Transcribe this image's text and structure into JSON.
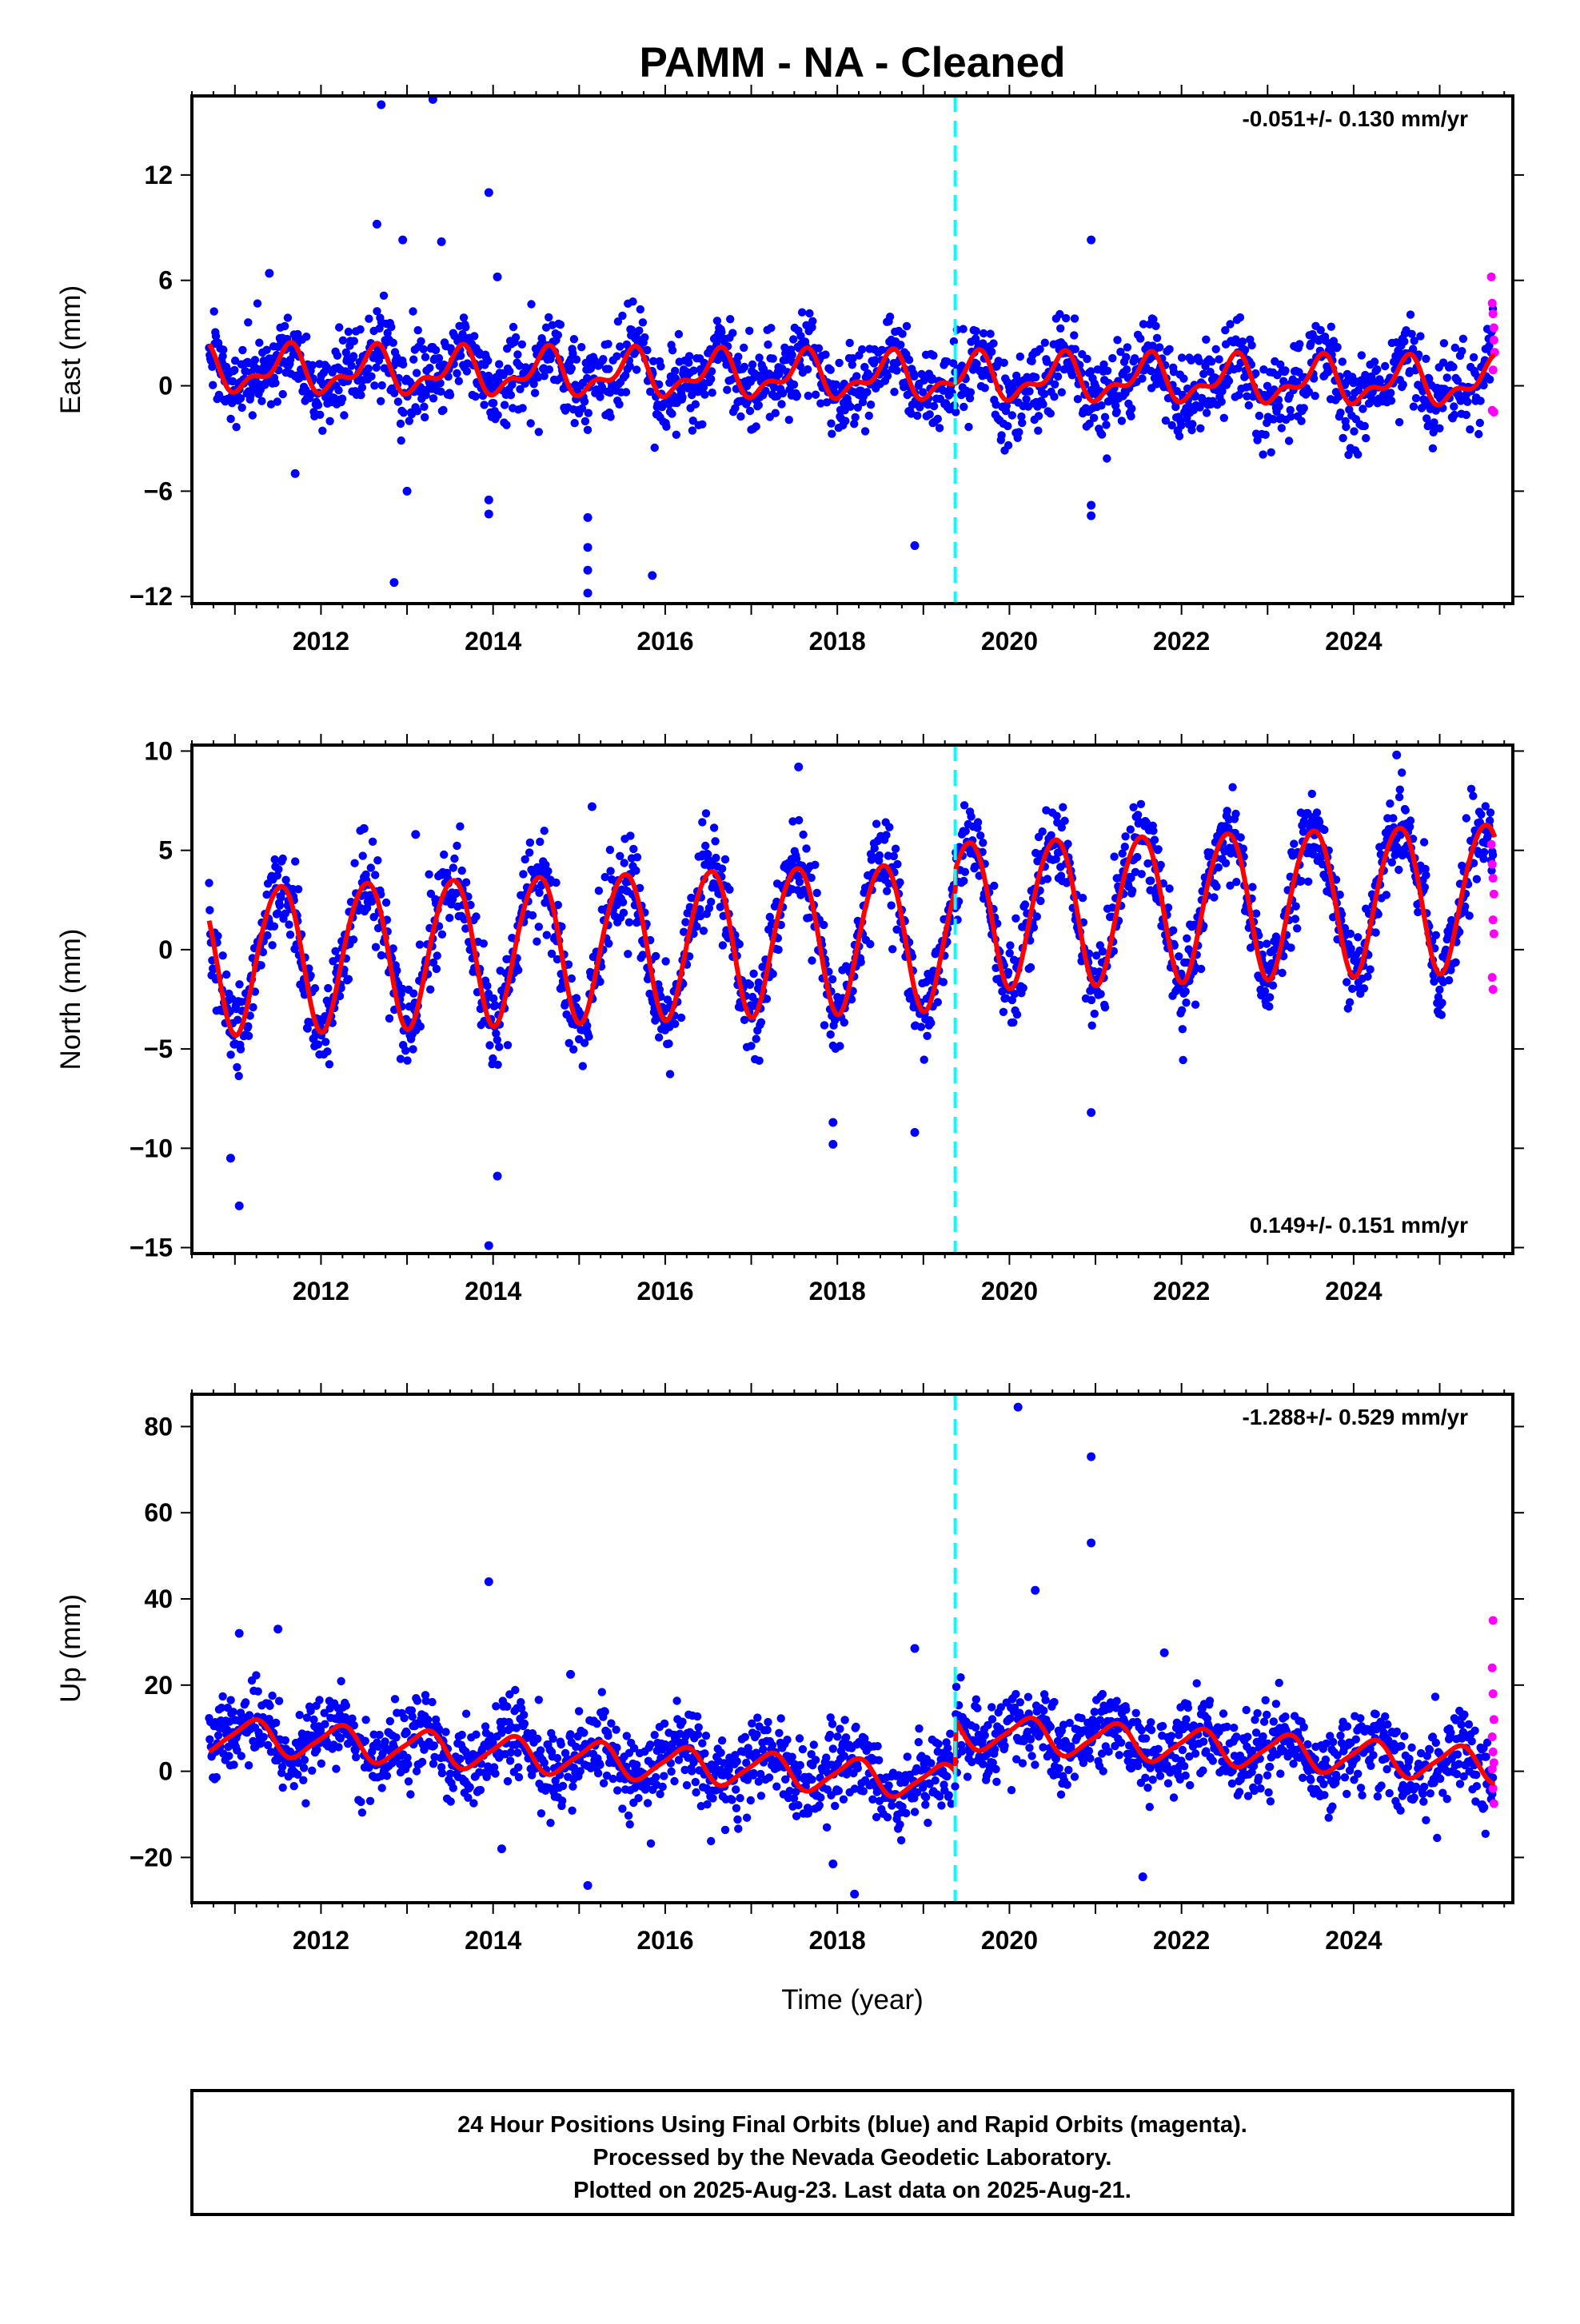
{
  "title": "PAMM  - NA - Cleaned",
  "xlabel": "Time (year)",
  "footer": [
    "24 Hour Positions Using Final Orbits (blue) and Rapid Orbits (magenta).",
    "Processed by the Nevada Geodetic Laboratory.",
    "Plotted on 2025-Aug-23. Last data on 2025-Aug-21."
  ],
  "colors": {
    "final_orbits": "#0000ff",
    "rapid_orbits": "#ff00ff",
    "model_fit": "#ff0000",
    "event_line": "#00ffff"
  },
  "event_marker_year": 2019.37,
  "x_ticks": [
    "2012",
    "2014",
    "2016",
    "2018",
    "2020",
    "2022",
    "2024"
  ],
  "chart_data": [
    {
      "type": "scatter",
      "component": "east",
      "ylabel": "East (mm)",
      "rate_text": "-0.051+/- 0.130 mm/yr",
      "rate_position": "top-right",
      "xlim": [
        2010.5,
        2025.85
      ],
      "ylim": [
        -12.4,
        16.5
      ],
      "y_ticks": [
        -12,
        -6,
        0,
        6,
        12
      ],
      "model": {
        "rate": -0.051,
        "annual_amplitude": 1.1,
        "annual_phase": 0.35,
        "semiannual_amplitude": 0.6,
        "semiannual_phase": 0.55,
        "offset_at_start": 0.9,
        "start_year": 2010.7,
        "end_year": 2025.64
      },
      "scatter": {
        "noise": 1.2
      },
      "outliers": [
        {
          "x": 2012.7,
          "y": 16.0
        },
        {
          "x": 2013.3,
          "y": 16.3
        },
        {
          "x": 2013.95,
          "y": 11.0
        },
        {
          "x": 2012.65,
          "y": 9.2
        },
        {
          "x": 2012.95,
          "y": 8.3
        },
        {
          "x": 2013.4,
          "y": 8.2
        },
        {
          "x": 2020.95,
          "y": 8.3
        },
        {
          "x": 2011.4,
          "y": 6.4
        },
        {
          "x": 2014.05,
          "y": 6.2
        },
        {
          "x": 2012.85,
          "y": -11.2
        },
        {
          "x": 2013.95,
          "y": -6.5
        },
        {
          "x": 2013.95,
          "y": -7.3
        },
        {
          "x": 2015.1,
          "y": -7.5
        },
        {
          "x": 2015.1,
          "y": -9.2
        },
        {
          "x": 2015.1,
          "y": -10.5
        },
        {
          "x": 2015.1,
          "y": -11.8
        },
        {
          "x": 2015.85,
          "y": -10.8
        },
        {
          "x": 2018.9,
          "y": -9.1
        },
        {
          "x": 2020.95,
          "y": -6.8
        },
        {
          "x": 2020.95,
          "y": -7.4
        },
        {
          "x": 2011.7,
          "y": -5.0
        },
        {
          "x": 2013.0,
          "y": -6.0
        }
      ],
      "rapid_points": [
        {
          "x": 2025.6,
          "y": 6.2
        },
        {
          "x": 2025.61,
          "y": 4.7
        },
        {
          "x": 2025.62,
          "y": 4.1
        },
        {
          "x": 2025.63,
          "y": 3.3
        },
        {
          "x": 2025.63,
          "y": 2.6
        },
        {
          "x": 2025.64,
          "y": 1.9
        },
        {
          "x": 2025.62,
          "y": 0.9
        },
        {
          "x": 2025.61,
          "y": -1.4
        },
        {
          "x": 2025.63,
          "y": -1.5
        }
      ]
    },
    {
      "type": "scatter",
      "component": "north",
      "ylabel": "North (mm)",
      "rate_text": "0.149+/- 0.151 mm/yr",
      "rate_position": "bottom-right",
      "xlim": [
        2010.5,
        2025.85
      ],
      "ylim": [
        -15.3,
        10.3
      ],
      "y_ticks": [
        -15,
        -10,
        -5,
        0,
        5,
        10
      ],
      "model": {
        "rate": 0.149,
        "annual_amplitude": 3.7,
        "annual_phase": 0.27,
        "semiannual_amplitude": 0.3,
        "semiannual_phase": 0.1,
        "offset_at_start": -0.4,
        "start_year": 2010.7,
        "end_year": 2025.64,
        "step_at_event": 1.0
      },
      "scatter": {
        "noise": 1.1
      },
      "outliers": [
        {
          "x": 2010.95,
          "y": -10.5
        },
        {
          "x": 2011.05,
          "y": -12.9
        },
        {
          "x": 2014.05,
          "y": -11.4
        },
        {
          "x": 2013.95,
          "y": -14.9
        },
        {
          "x": 2017.95,
          "y": -8.7
        },
        {
          "x": 2017.95,
          "y": -9.8
        },
        {
          "x": 2018.9,
          "y": -9.2
        },
        {
          "x": 2020.95,
          "y": -8.2
        },
        {
          "x": 2017.55,
          "y": 9.2
        },
        {
          "x": 2024.5,
          "y": 9.8
        },
        {
          "x": 2013.1,
          "y": 5.8
        },
        {
          "x": 2012.5,
          "y": 6.1
        },
        {
          "x": 2015.15,
          "y": 7.2
        }
      ],
      "rapid_points": [
        {
          "x": 2025.6,
          "y": 5.3
        },
        {
          "x": 2025.61,
          "y": 4.3
        },
        {
          "x": 2025.62,
          "y": 3.6
        },
        {
          "x": 2025.63,
          "y": 2.8
        },
        {
          "x": 2025.62,
          "y": 1.5
        },
        {
          "x": 2025.63,
          "y": 0.8
        },
        {
          "x": 2025.61,
          "y": -1.4
        },
        {
          "x": 2025.62,
          "y": -2.0
        }
      ]
    },
    {
      "type": "scatter",
      "component": "up",
      "ylabel": "Up (mm)",
      "rate_text": "-1.288+/- 0.529 mm/yr",
      "rate_position": "top-right",
      "xlim": [
        2010.5,
        2025.85
      ],
      "ylim": [
        -30.5,
        87.5
      ],
      "y_ticks": [
        -20,
        0,
        20,
        40,
        60,
        80
      ],
      "model": {
        "rate": -1.288,
        "annual_amplitude": 3.9,
        "annual_phase": 0.95,
        "semiannual_amplitude": 0.8,
        "semiannual_phase": 0.2,
        "offset_at_start": 8.5,
        "start_year": 2010.7,
        "end_year": 2025.64,
        "step_at_event": 12.0
      },
      "scatter": {
        "noise": 4.8
      },
      "outliers": [
        {
          "x": 2020.1,
          "y": 84.5
        },
        {
          "x": 2020.95,
          "y": 73.0
        },
        {
          "x": 2020.95,
          "y": 53.0
        },
        {
          "x": 2013.95,
          "y": 44.0
        },
        {
          "x": 2020.3,
          "y": 42.0
        },
        {
          "x": 2011.05,
          "y": 32.0
        },
        {
          "x": 2011.5,
          "y": 33.0
        },
        {
          "x": 2018.9,
          "y": 28.5
        },
        {
          "x": 2021.8,
          "y": 27.5
        },
        {
          "x": 2015.1,
          "y": -26.5
        },
        {
          "x": 2018.2,
          "y": -28.5
        },
        {
          "x": 2021.55,
          "y": -24.5
        },
        {
          "x": 2014.1,
          "y": -18.0
        },
        {
          "x": 2017.95,
          "y": -21.5
        },
        {
          "x": 2014.9,
          "y": 22.5
        }
      ],
      "rapid_points": [
        {
          "x": 2025.62,
          "y": 35.0
        },
        {
          "x": 2025.61,
          "y": 24.0
        },
        {
          "x": 2025.62,
          "y": 18.0
        },
        {
          "x": 2025.63,
          "y": 12.0
        },
        {
          "x": 2025.61,
          "y": 8.0
        },
        {
          "x": 2025.62,
          "y": 4.5
        },
        {
          "x": 2025.63,
          "y": 2.0
        },
        {
          "x": 2025.61,
          "y": 0.5
        },
        {
          "x": 2025.62,
          "y": -4.0
        },
        {
          "x": 2025.63,
          "y": -7.5
        }
      ]
    }
  ]
}
